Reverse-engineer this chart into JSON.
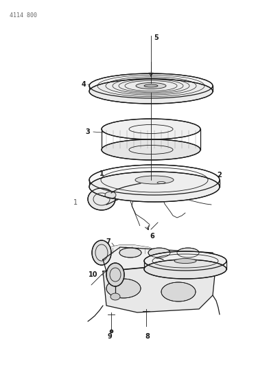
{
  "title": "4114 800",
  "background_color": "#ffffff",
  "line_color": "#1a1a1a",
  "fig_width": 4.08,
  "fig_height": 5.33,
  "dpi": 100
}
